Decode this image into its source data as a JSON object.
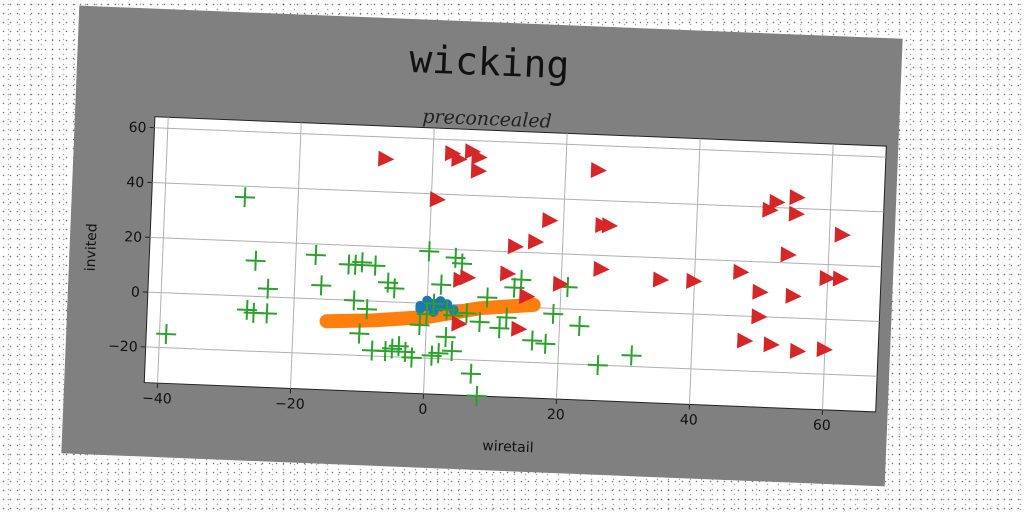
{
  "figure": {
    "title": "wicking",
    "subtitle": "preconcealed"
  },
  "chart_data": {
    "type": "scatter",
    "title": "preconcealed",
    "xlabel": "wiretail",
    "ylabel": "invited",
    "xlim": [
      -42,
      68
    ],
    "ylim": [
      -33,
      64
    ],
    "xticks": [
      -40,
      -20,
      0,
      20,
      40,
      60
    ],
    "yticks": [
      -20,
      0,
      20,
      40,
      60
    ],
    "grid": true,
    "colors": {
      "plus": "#2ca02c",
      "triangle": "#d62728",
      "band": "#ff7f0e",
      "blob": "#1f77b4"
    },
    "series": [
      {
        "marker": "triangle-right",
        "color": "#d62728",
        "points": [
          [
            -7,
            52
          ],
          [
            3,
            55
          ],
          [
            4,
            53
          ],
          [
            6,
            56
          ],
          [
            7,
            54
          ],
          [
            7,
            49
          ],
          [
            25,
            51
          ],
          [
            1,
            38
          ],
          [
            18,
            32
          ],
          [
            26,
            31
          ],
          [
            27,
            31
          ],
          [
            16,
            24
          ],
          [
            13,
            22
          ],
          [
            6,
            10
          ],
          [
            12,
            12
          ],
          [
            5,
            9
          ],
          [
            20,
            9
          ],
          [
            15,
            4
          ],
          [
            26,
            15
          ],
          [
            35,
            12
          ],
          [
            40,
            12
          ],
          [
            47,
            16
          ],
          [
            50,
            9
          ],
          [
            55,
            8
          ],
          [
            50,
            0
          ],
          [
            48,
            -9
          ],
          [
            52,
            -10
          ],
          [
            56,
            -12
          ],
          [
            60,
            -11
          ],
          [
            62,
            31
          ],
          [
            60,
            15
          ],
          [
            62,
            15
          ],
          [
            55,
            44
          ],
          [
            52,
            42
          ],
          [
            51,
            39
          ],
          [
            55,
            38
          ],
          [
            54,
            23
          ],
          [
            14,
            -8
          ],
          [
            5,
            -7
          ]
        ]
      },
      {
        "marker": "plus",
        "color": "#2ca02c",
        "points": [
          [
            -28,
            36
          ],
          [
            -26,
            13
          ],
          [
            -24,
            3
          ],
          [
            -27,
            -5
          ],
          [
            -26,
            -6
          ],
          [
            -24,
            -6
          ],
          [
            -17,
            16
          ],
          [
            -16,
            5
          ],
          [
            -12,
            13
          ],
          [
            -11,
            13
          ],
          [
            -10,
            14
          ],
          [
            -8,
            13
          ],
          [
            -11,
            0
          ],
          [
            -9,
            -3
          ],
          [
            -6,
            7
          ],
          [
            -5,
            5
          ],
          [
            0,
            19
          ],
          [
            4,
            17
          ],
          [
            5,
            15
          ],
          [
            2,
            7
          ],
          [
            -8,
            -18
          ],
          [
            -6,
            -18
          ],
          [
            -5,
            -17
          ],
          [
            -3,
            -18
          ],
          [
            -4,
            -16
          ],
          [
            -2,
            -20
          ],
          [
            1,
            -19
          ],
          [
            2,
            -18
          ],
          [
            3,
            -12
          ],
          [
            4,
            -17
          ],
          [
            -1,
            -8
          ],
          [
            0,
            -4
          ],
          [
            3,
            -2
          ],
          [
            1,
            0
          ],
          [
            4,
            -4
          ],
          [
            6,
            -3
          ],
          [
            8,
            -6
          ],
          [
            9,
            3
          ],
          [
            11,
            -8
          ],
          [
            12,
            -4
          ],
          [
            13,
            7
          ],
          [
            14,
            10
          ],
          [
            16,
            -12
          ],
          [
            18,
            -13
          ],
          [
            19,
            -2
          ],
          [
            21,
            8
          ],
          [
            23,
            -6
          ],
          [
            26,
            -20
          ],
          [
            31,
            -16
          ],
          [
            -39,
            -15
          ],
          [
            7,
            -25
          ],
          [
            8,
            -33
          ],
          [
            -10,
            -12
          ]
        ]
      },
      {
        "marker": "circle",
        "color": "#1f77b4",
        "points": [
          [
            -1,
            -1
          ],
          [
            0,
            1
          ],
          [
            1,
            0
          ],
          [
            2,
            -1
          ],
          [
            3,
            0
          ],
          [
            1,
            -3
          ],
          [
            -1,
            -2
          ],
          [
            4,
            -2
          ],
          [
            2,
            1
          ],
          [
            0,
            -1
          ]
        ]
      },
      {
        "marker": "thick-band",
        "color": "#ff7f0e",
        "points": [
          [
            -15,
            -8
          ],
          [
            -8,
            -7
          ],
          [
            0,
            -5
          ],
          [
            8,
            -1
          ],
          [
            16,
            1
          ]
        ]
      }
    ]
  }
}
